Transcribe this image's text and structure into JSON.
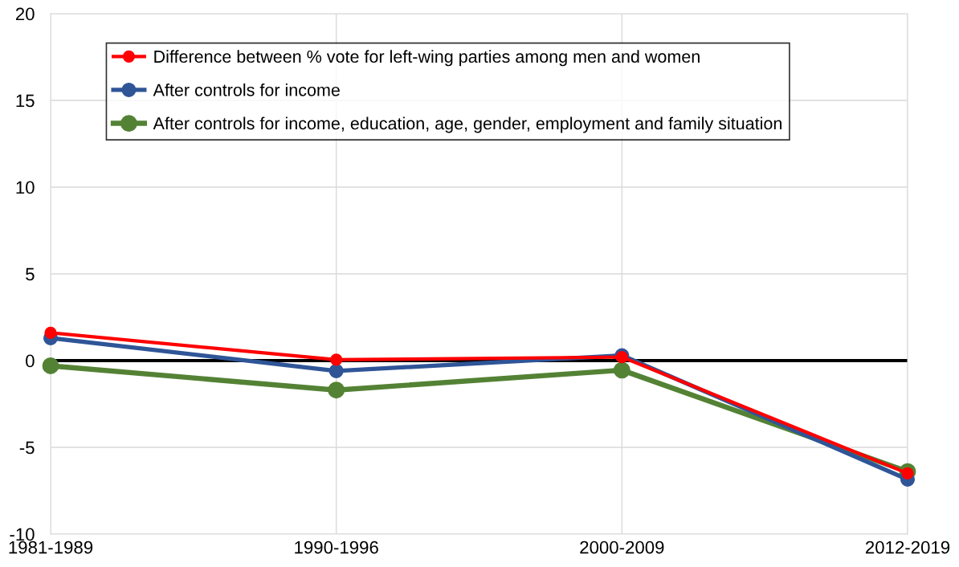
{
  "chart_data": {
    "type": "line",
    "categories": [
      "1981-1989",
      "1990-1996",
      "2000-2009",
      "2012-2019"
    ],
    "series": [
      {
        "name": "Difference between % vote for left-wing parties among men and women",
        "color": "#ff0000",
        "values": [
          1.6,
          0.05,
          0.2,
          -6.5
        ]
      },
      {
        "name": "After controls for income",
        "color": "#2f5597",
        "values": [
          1.3,
          -0.6,
          0.3,
          -6.85
        ]
      },
      {
        "name": "After controls for income, education, age, gender, employment and family situation",
        "color": "#548235",
        "values": [
          -0.3,
          -1.7,
          -0.55,
          -6.4
        ]
      }
    ],
    "ylim": [
      -10,
      20
    ],
    "yticks": [
      -10,
      -5,
      0,
      5,
      10,
      15,
      20
    ],
    "ref_lines": [
      {
        "axis": "y",
        "value": 0,
        "color": "#000000"
      }
    ],
    "grid": true,
    "legend": "top left",
    "marker": "circle",
    "line_style": "solid"
  }
}
